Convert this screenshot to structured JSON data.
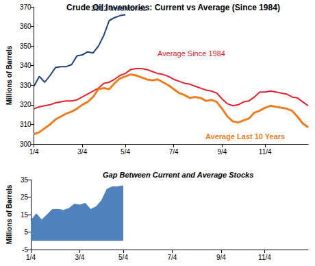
{
  "chart_data": [
    {
      "type": "line",
      "title": "Crude Oil Inventories: Current vs Average (Since 1984)",
      "ylabel": "Millions of Barrels",
      "categories": [
        "1/4",
        null,
        null,
        null,
        null,
        null,
        null,
        null,
        null,
        "3/4",
        null,
        null,
        null,
        null,
        null,
        null,
        null,
        "5/4",
        null,
        null,
        null,
        null,
        null,
        null,
        null,
        null,
        "7/4",
        null,
        null,
        null,
        null,
        null,
        null,
        null,
        null,
        "9/4",
        null,
        null,
        null,
        null,
        null,
        null,
        null,
        "11/4",
        null,
        null,
        null,
        null,
        null,
        null,
        null,
        null
      ],
      "series": [
        {
          "name": "2012 Inventories",
          "color": "#1f3f7f",
          "values": [
            329.5,
            334.5,
            331.5,
            335,
            339,
            339.5,
            339.5,
            340.5,
            345,
            345.5,
            347,
            346.5,
            350,
            355.5,
            363,
            364.5,
            365.5,
            366,
            null,
            null,
            null,
            null,
            null,
            null,
            null,
            null,
            null,
            null,
            null,
            null,
            null,
            null,
            null,
            null,
            null,
            null,
            null,
            null,
            null,
            null,
            null,
            null,
            null,
            null,
            null,
            null,
            null,
            null,
            null,
            null,
            null,
            null
          ]
        },
        {
          "name": "Average Since 1984",
          "color": "#e8202a",
          "values": [
            318,
            319,
            319.5,
            320,
            321,
            321.5,
            322,
            322,
            322.5,
            324,
            325.5,
            327,
            328.5,
            331,
            331.5,
            333,
            335,
            336,
            338,
            338.5,
            338.5,
            338,
            337,
            336,
            335.5,
            334.5,
            333,
            332,
            331,
            330.5,
            329.5,
            328.5,
            327.5,
            327,
            326,
            323,
            320.5,
            319.5,
            320,
            321.5,
            322,
            324,
            326.5,
            326.5,
            327,
            326.5,
            326,
            325.5,
            324,
            323.5,
            321.5,
            319.5
          ]
        },
        {
          "name": "Average Last 10 Years",
          "color": "#f07d1d",
          "values": [
            305,
            306,
            308,
            310,
            312.5,
            314,
            315.5,
            316.5,
            318,
            320,
            321.5,
            324,
            328,
            328.5,
            328,
            331,
            333.5,
            334.5,
            335.5,
            335,
            334,
            333,
            332.5,
            333,
            331.5,
            330,
            328,
            326,
            325,
            323.5,
            324,
            323.5,
            322,
            322.5,
            321.5,
            318,
            314,
            311.5,
            311,
            312,
            313,
            316,
            317,
            318.5,
            319.5,
            319,
            318.5,
            318,
            317,
            314,
            310.5,
            308.5
          ]
        }
      ],
      "ylim": [
        300,
        370
      ],
      "yticks": [
        300,
        310,
        320,
        330,
        340,
        350,
        360,
        370
      ],
      "grid": false
    },
    {
      "type": "area",
      "title": "Gap Between Current and Average Stocks",
      "ylabel": "Millions of Barrels",
      "categories": [
        "1/4",
        null,
        null,
        null,
        null,
        null,
        null,
        null,
        null,
        "3/4",
        null,
        null,
        null,
        null,
        null,
        null,
        null,
        "5/4",
        null,
        null,
        null,
        null,
        null,
        null,
        null,
        null,
        "7/4",
        null,
        null,
        null,
        null,
        null,
        null,
        null,
        null,
        "9/4",
        null,
        null,
        null,
        null,
        null,
        null,
        null,
        "11/4",
        null,
        null,
        null,
        null,
        null,
        null,
        null,
        null
      ],
      "values": [
        11.5,
        15.5,
        12,
        15,
        18,
        18,
        17.5,
        18.5,
        21,
        20.5,
        21.5,
        18,
        19.5,
        23,
        29.5,
        31,
        31,
        31.5,
        null,
        null,
        null,
        null,
        null,
        null,
        null,
        null,
        null,
        null,
        null,
        null,
        null,
        null,
        null,
        null,
        null,
        null,
        null,
        null,
        null,
        null,
        null,
        null,
        null,
        null,
        null,
        null,
        null,
        null,
        null,
        null,
        null,
        null
      ],
      "color": "#4f81bd",
      "ylim": [
        -5,
        35
      ],
      "yticks": [
        -5,
        5,
        15,
        25,
        35
      ],
      "grid": false
    }
  ]
}
